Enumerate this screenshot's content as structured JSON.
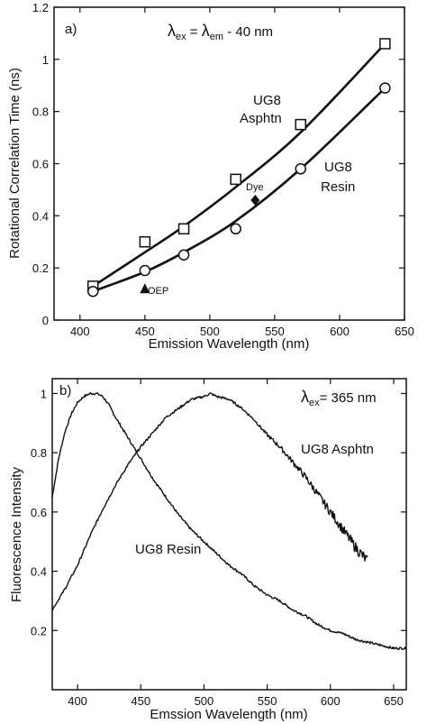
{
  "chart_data": [
    {
      "type": "scatter",
      "panel_label": "a)",
      "annotation_parts": [
        "λ",
        "ex",
        " = ",
        "λ",
        "em",
        " - 40 nm"
      ],
      "xlabel": "Emission Wavelength (nm)",
      "ylabel": "Rotational Correlation Time (ns)",
      "xlim": [
        380,
        650
      ],
      "ylim": [
        0,
        1.2
      ],
      "xticks": [
        400,
        450,
        500,
        550,
        600,
        650
      ],
      "yticks": [
        0,
        0.2,
        0.4,
        0.6,
        0.8,
        1,
        1.2
      ],
      "grid": false,
      "series": [
        {
          "name": "UG8 Asphtn",
          "label_lines": [
            "UG8",
            "Asphtn"
          ],
          "marker": "square",
          "x": [
            410,
            450,
            480,
            520,
            570,
            635
          ],
          "y": [
            0.13,
            0.3,
            0.35,
            0.54,
            0.75,
            1.06
          ],
          "fit_x": [
            410,
            450,
            480,
            520,
            570,
            635
          ],
          "fit_y": [
            0.13,
            0.26,
            0.36,
            0.51,
            0.72,
            1.06
          ]
        },
        {
          "name": "UG8 Resin",
          "label_lines": [
            "UG8",
            "Resin"
          ],
          "marker": "circle",
          "x": [
            410,
            450,
            480,
            520,
            570,
            635
          ],
          "y": [
            0.11,
            0.19,
            0.25,
            0.35,
            0.58,
            0.89
          ],
          "fit_x": [
            410,
            450,
            480,
            520,
            570,
            635
          ],
          "fit_y": [
            0.11,
            0.185,
            0.26,
            0.38,
            0.58,
            0.89
          ]
        },
        {
          "name": "Dye",
          "marker": "diamond",
          "x": [
            535
          ],
          "y": [
            0.46
          ]
        },
        {
          "name": "OEP",
          "marker": "triangle",
          "x": [
            450
          ],
          "y": [
            0.12
          ]
        }
      ]
    },
    {
      "type": "line",
      "panel_label": "b)",
      "annotation_parts": [
        "λ",
        "ex",
        "= 365 nm"
      ],
      "xlabel": "Emssion Wavelength (nm)",
      "ylabel": "Fluorescence Intensity",
      "xlim": [
        380,
        660
      ],
      "ylim": [
        0,
        1.05
      ],
      "xticks": [
        400,
        450,
        500,
        550,
        600,
        650
      ],
      "yticks": [
        0.2,
        0.4,
        0.6,
        0.8,
        1
      ],
      "grid": false,
      "series": [
        {
          "name": "UG8 Resin",
          "x": [
            380,
            385,
            390,
            395,
            400,
            405,
            410,
            415,
            420,
            425,
            430,
            440,
            450,
            460,
            470,
            480,
            490,
            500,
            510,
            520,
            530,
            540,
            550,
            560,
            570,
            580,
            590,
            600,
            610,
            620,
            630,
            640,
            650,
            660
          ],
          "y": [
            0.65,
            0.78,
            0.87,
            0.93,
            0.97,
            0.99,
            1.0,
            1.0,
            0.99,
            0.96,
            0.92,
            0.85,
            0.78,
            0.71,
            0.65,
            0.59,
            0.54,
            0.5,
            0.46,
            0.42,
            0.39,
            0.35,
            0.32,
            0.3,
            0.27,
            0.25,
            0.22,
            0.2,
            0.19,
            0.17,
            0.16,
            0.15,
            0.14,
            0.14
          ]
        },
        {
          "name": "UG8 Asphtn",
          "x": [
            380,
            390,
            400,
            410,
            420,
            430,
            440,
            450,
            460,
            470,
            480,
            490,
            500,
            505,
            510,
            520,
            530,
            540,
            550,
            560,
            570,
            580,
            590,
            600,
            610,
            620,
            630
          ],
          "y": [
            0.27,
            0.34,
            0.42,
            0.52,
            0.61,
            0.69,
            0.76,
            0.82,
            0.87,
            0.92,
            0.95,
            0.98,
            0.99,
            1.0,
            0.99,
            0.98,
            0.95,
            0.91,
            0.86,
            0.82,
            0.77,
            0.72,
            0.66,
            0.6,
            0.54,
            0.48,
            0.43
          ]
        }
      ]
    }
  ]
}
